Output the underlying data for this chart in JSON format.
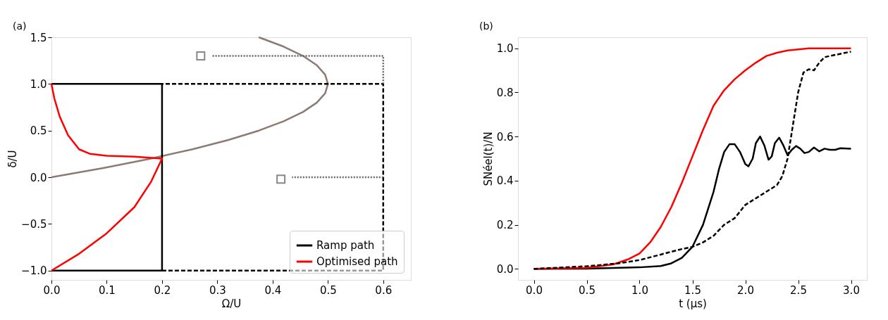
{
  "chart_data": [
    {
      "type": "line",
      "annotations": [
        "(a)"
      ],
      "xlabel": "Ω/U",
      "ylabel": "δ/U",
      "xlim": [
        0,
        0.65
      ],
      "ylim": [
        -1.1,
        1.5
      ],
      "xticks": [
        {
          "value": 0,
          "label": "0.0"
        },
        0.1,
        0.2,
        0.3,
        0.4,
        0.5,
        0.6
      ],
      "yticks": [
        {
          "value": -1,
          "label": "−1.0"
        },
        {
          "value": -0.5,
          "label": "−0.5"
        },
        {
          "value": 0,
          "label": "0.0"
        },
        0.5,
        {
          "value": 1,
          "label": "1.0"
        },
        1.5
      ],
      "grid": false,
      "legend": "bottom right",
      "series": [
        {
          "name": null,
          "color": "#8c7b74",
          "line_style": "solid",
          "x": [
            0,
            0.095,
            0.18,
            0.255,
            0.32,
            0.375,
            0.42,
            0.455,
            0.48,
            0.495,
            0.5,
            0.495,
            0.48,
            0.455,
            0.42,
            0.375
          ],
          "values": [
            0,
            0.1,
            0.2,
            0.3,
            0.4,
            0.5,
            0.6,
            0.7,
            0.8,
            0.9,
            1.0,
            1.1,
            1.2,
            1.3,
            1.4,
            1.5
          ]
        },
        {
          "name": null,
          "color": "#000000",
          "line_style": "dashed",
          "x": [
            0.2,
            0.6,
            0.6,
            0.2
          ],
          "values": [
            -1,
            -1,
            1,
            1
          ]
        },
        {
          "name": null,
          "color": "#666666",
          "line_style": "dotted",
          "x": [
            0.6,
            0.6,
            0.29
          ],
          "values": [
            1,
            1.3,
            1.3
          ]
        },
        {
          "name": null,
          "color": "#666666",
          "line_style": "dotted",
          "x": [
            0.6,
            0.435
          ],
          "values": [
            0,
            0
          ]
        },
        {
          "name": null,
          "type": "scatter",
          "marker": "square",
          "color": "#555555",
          "x": [
            0.27,
            0.415
          ],
          "values": [
            1.3,
            -0.02
          ]
        },
        {
          "name": "Ramp path",
          "color": "#000000",
          "line_style": "solid",
          "x": [
            0,
            0.2,
            0.2,
            0
          ],
          "values": [
            -1,
            -1,
            1,
            1
          ]
        },
        {
          "name": "Optimised path",
          "color": "#ff0000",
          "line_style": "solid",
          "x": [
            0,
            0.05,
            0.1,
            0.15,
            0.18,
            0.2,
            0.15,
            0.1,
            0.07,
            0.05,
            0.03,
            0.015,
            0.005,
            0
          ],
          "values": [
            -1,
            -0.82,
            -0.6,
            -0.32,
            -0.05,
            0.2,
            0.22,
            0.23,
            0.25,
            0.3,
            0.45,
            0.65,
            0.85,
            1
          ]
        }
      ]
    },
    {
      "type": "line",
      "annotations": [
        "(b)"
      ],
      "xlabel": "t (μs)",
      "ylabel": "SNéel(t)/N",
      "xlim": [
        -0.15,
        3.15
      ],
      "ylim": [
        -0.05,
        1.05
      ],
      "xticks": [
        {
          "value": 0,
          "label": "0.0"
        },
        0.5,
        {
          "value": 1,
          "label": "1.0"
        },
        1.5,
        {
          "value": 2,
          "label": "2.0"
        },
        2.5,
        {
          "value": 3,
          "label": "3.0"
        }
      ],
      "yticks": [
        {
          "value": 0,
          "label": "0.0"
        },
        0.2,
        0.4,
        0.6,
        0.8,
        {
          "value": 1,
          "label": "1.0"
        }
      ],
      "grid": false,
      "series": [
        {
          "name": null,
          "color": "#000000",
          "line_style": "solid",
          "x": [
            0,
            0.5,
            1.0,
            1.2,
            1.3,
            1.4,
            1.5,
            1.6,
            1.7,
            1.75,
            1.8,
            1.85,
            1.9,
            1.95,
            2.0,
            2.03,
            2.07,
            2.1,
            2.14,
            2.18,
            2.22,
            2.25,
            2.28,
            2.32,
            2.36,
            2.4,
            2.44,
            2.48,
            2.52,
            2.56,
            2.6,
            2.65,
            2.7,
            2.75,
            2.8,
            2.85,
            2.9,
            3.0
          ],
          "values": [
            0,
            0.001,
            0.007,
            0.013,
            0.025,
            0.05,
            0.1,
            0.2,
            0.35,
            0.45,
            0.53,
            0.565,
            0.565,
            0.53,
            0.475,
            0.465,
            0.5,
            0.57,
            0.6,
            0.56,
            0.495,
            0.51,
            0.57,
            0.595,
            0.56,
            0.515,
            0.54,
            0.557,
            0.545,
            0.525,
            0.53,
            0.55,
            0.533,
            0.545,
            0.54,
            0.54,
            0.547,
            0.545
          ]
        },
        {
          "name": null,
          "color": "#ff0000",
          "line_style": "solid",
          "x": [
            0,
            0.5,
            0.75,
            0.9,
            1.0,
            1.1,
            1.2,
            1.3,
            1.4,
            1.5,
            1.6,
            1.7,
            1.8,
            1.9,
            2.0,
            2.1,
            2.2,
            2.3,
            2.4,
            2.6,
            3.0
          ],
          "values": [
            0,
            0.005,
            0.02,
            0.045,
            0.07,
            0.12,
            0.19,
            0.28,
            0.39,
            0.51,
            0.63,
            0.74,
            0.81,
            0.86,
            0.9,
            0.935,
            0.965,
            0.98,
            0.99,
            1.0,
            1.0
          ]
        },
        {
          "name": null,
          "color": "#000000",
          "line_style": "dashed",
          "x": [
            0,
            0.5,
            0.8,
            1.0,
            1.2,
            1.4,
            1.5,
            1.6,
            1.7,
            1.8,
            1.9,
            2.0,
            2.1,
            2.2,
            2.3,
            2.35,
            2.4,
            2.45,
            2.5,
            2.55,
            2.6,
            2.65,
            2.7,
            2.75,
            2.85,
            3.0
          ],
          "values": [
            0,
            0.012,
            0.025,
            0.04,
            0.065,
            0.09,
            0.1,
            0.12,
            0.15,
            0.2,
            0.23,
            0.29,
            0.32,
            0.35,
            0.38,
            0.42,
            0.5,
            0.65,
            0.8,
            0.89,
            0.905,
            0.9,
            0.935,
            0.96,
            0.97,
            0.985
          ]
        }
      ]
    }
  ]
}
